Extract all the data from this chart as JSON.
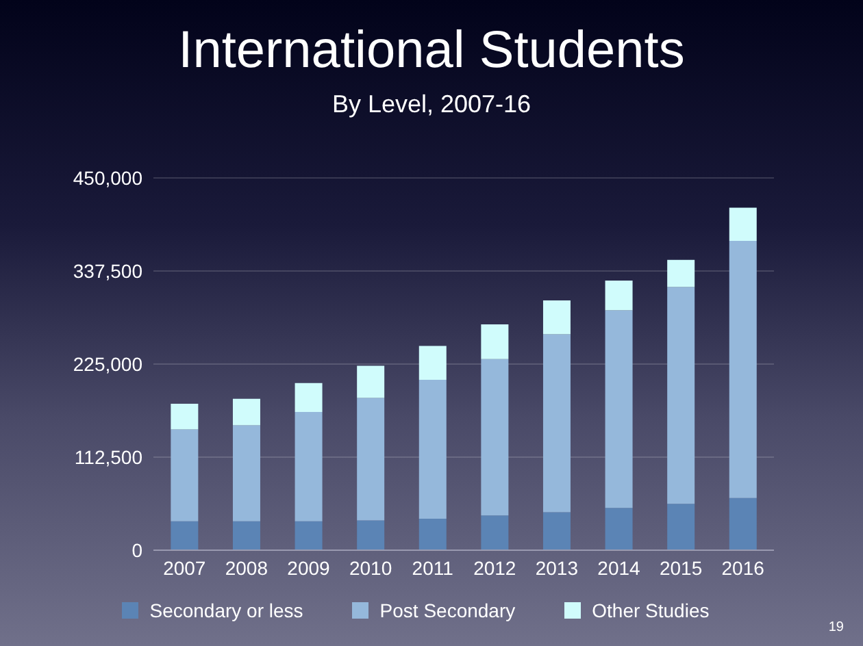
{
  "chart_data": {
    "type": "bar",
    "title": "International Students",
    "subtitle": "By Level, 2007-16",
    "categories": [
      "2007",
      "2008",
      "2009",
      "2010",
      "2011",
      "2012",
      "2013",
      "2014",
      "2015",
      "2016"
    ],
    "stacked": true,
    "series": [
      {
        "name": "Secondary or less",
        "color": "#5b84b5",
        "values": [
          35000,
          35000,
          35000,
          36000,
          38000,
          42000,
          46000,
          51000,
          56000,
          63000
        ]
      },
      {
        "name": "Post Secondary",
        "color": "#95b8db",
        "values": [
          111000,
          116000,
          132000,
          148000,
          168000,
          189000,
          215000,
          239000,
          262000,
          311000
        ]
      },
      {
        "name": "Other Studies",
        "color": "#d0fcfc",
        "values": [
          31000,
          32000,
          35000,
          39000,
          41000,
          42000,
          41000,
          36000,
          33000,
          40000
        ]
      }
    ],
    "ylim": [
      0,
      450000
    ],
    "yticks": [
      0,
      {
        "value": 112500,
        "label": "112,500"
      },
      {
        "value": 225000,
        "label": "225,000"
      },
      {
        "value": 337500,
        "label": "337,500"
      },
      {
        "value": 450000,
        "label": "450,000"
      }
    ],
    "grid": "y",
    "legend": "bottom",
    "annotations": [
      "19"
    ]
  }
}
